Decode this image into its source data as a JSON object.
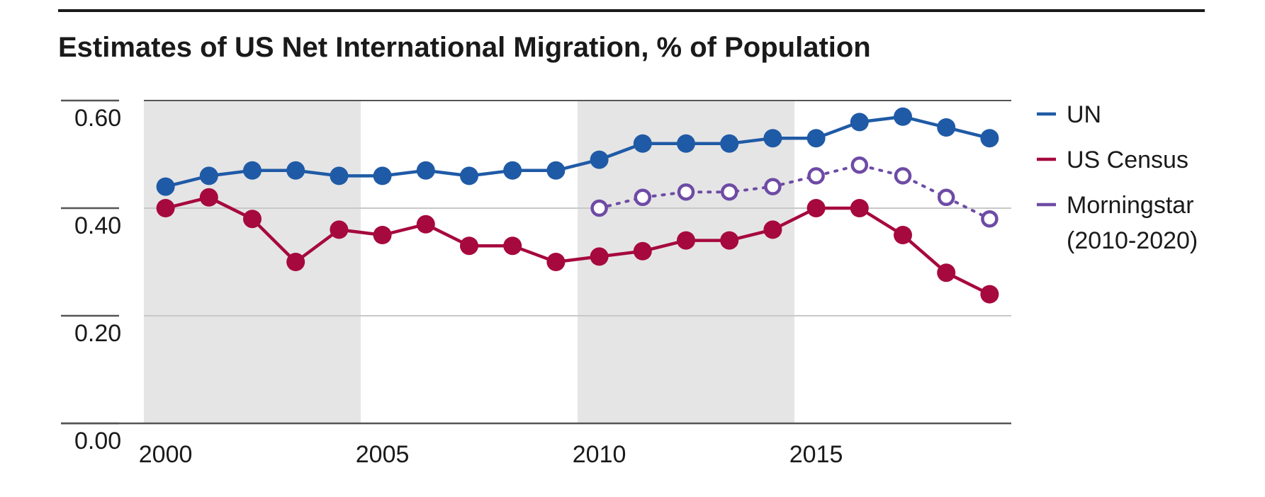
{
  "chart_data": {
    "type": "line",
    "title": "Estimates of US Net International Migration, % of Population",
    "xlabel": "",
    "ylabel": "",
    "xlim": [
      1999.5,
      2019.5
    ],
    "ylim": [
      0.0,
      0.6
    ],
    "x_ticks": [
      2000,
      2005,
      2010,
      2015
    ],
    "y_ticks": [
      {
        "value": 0.0,
        "label": "0.00"
      },
      {
        "value": 0.2,
        "label": "0.20"
      },
      {
        "value": 0.4,
        "label": "0.40"
      },
      {
        "value": 0.6,
        "label": "0.60"
      }
    ],
    "grid": true,
    "shaded_periods": [
      [
        1999.5,
        2004.5
      ],
      [
        2009.5,
        2014.5
      ]
    ],
    "legend_position": "right",
    "series": [
      {
        "name": "UN",
        "color": "#1f5aa6",
        "style": "solid",
        "marker": "filled-circle",
        "x": [
          2000,
          2001,
          2002,
          2003,
          2004,
          2005,
          2006,
          2007,
          2008,
          2009,
          2010,
          2011,
          2012,
          2013,
          2014,
          2015,
          2016,
          2017,
          2018,
          2019
        ],
        "y": [
          0.44,
          0.46,
          0.47,
          0.47,
          0.46,
          0.46,
          0.47,
          0.46,
          0.47,
          0.47,
          0.49,
          0.52,
          0.52,
          0.52,
          0.53,
          0.53,
          0.56,
          0.57,
          0.55,
          0.53
        ]
      },
      {
        "name": "US Census",
        "color": "#a6093d",
        "style": "solid",
        "marker": "filled-circle",
        "x": [
          2000,
          2001,
          2002,
          2003,
          2004,
          2005,
          2006,
          2007,
          2008,
          2009,
          2010,
          2011,
          2012,
          2013,
          2014,
          2015,
          2016,
          2017,
          2018,
          2019
        ],
        "y": [
          0.4,
          0.42,
          0.38,
          0.3,
          0.36,
          0.35,
          0.37,
          0.33,
          0.33,
          0.3,
          0.31,
          0.32,
          0.34,
          0.34,
          0.36,
          0.4,
          0.4,
          0.35,
          0.28,
          0.24
        ]
      },
      {
        "name": "Morningstar\n(2010-2020)",
        "color": "#6e4ba5",
        "style": "dotted",
        "marker": "hollow-circle",
        "x": [
          2010,
          2011,
          2012,
          2013,
          2014,
          2015,
          2016,
          2017,
          2018,
          2019
        ],
        "y": [
          0.4,
          0.42,
          0.43,
          0.43,
          0.44,
          0.46,
          0.48,
          0.46,
          0.42,
          0.38
        ]
      }
    ]
  }
}
